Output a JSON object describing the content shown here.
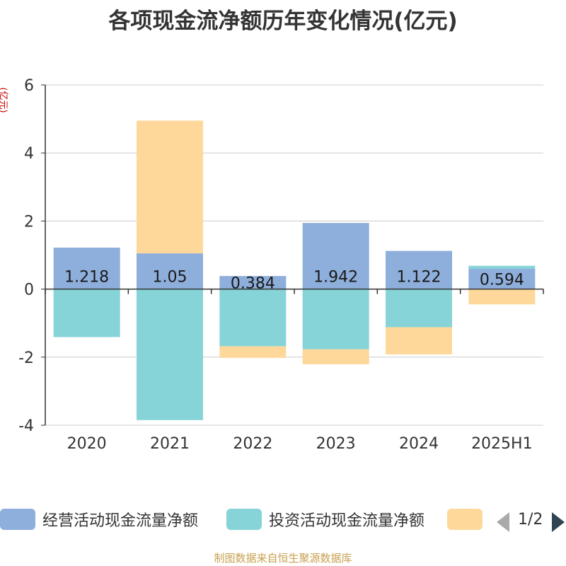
{
  "chart_data": {
    "type": "bar",
    "stacked": true,
    "title": "各项现金流净额历年变化情况(亿元)",
    "unit": "(亿元)",
    "categories": [
      "2020",
      "2021",
      "2022",
      "2023",
      "2024",
      "2025H1"
    ],
    "ylim": [
      -4,
      6
    ],
    "yticks": [
      "6",
      "4",
      "2",
      "0",
      "-2",
      "-4"
    ],
    "grid": true,
    "legend_position": "bottom",
    "series": [
      {
        "name": "经营活动现金流量净额",
        "color": "#8eaedc",
        "values": [
          1.218,
          1.05,
          0.384,
          1.942,
          1.122,
          0.594
        ],
        "labels": [
          "1.218",
          "1.05",
          "0.384",
          "1.942",
          "1.122",
          "0.594"
        ]
      },
      {
        "name": "投资活动现金流量净额",
        "color": "#86d4d8",
        "values": [
          -1.41,
          -3.85,
          -1.68,
          -1.77,
          -1.12,
          0.09
        ]
      },
      {
        "name": "",
        "color": "#fdd89a",
        "values": [
          0.0,
          3.9,
          -0.34,
          -0.44,
          -0.8,
          -0.45
        ]
      }
    ]
  },
  "legend": {
    "page": "1/2"
  },
  "source": "制图数据来自恒生聚源数据库"
}
